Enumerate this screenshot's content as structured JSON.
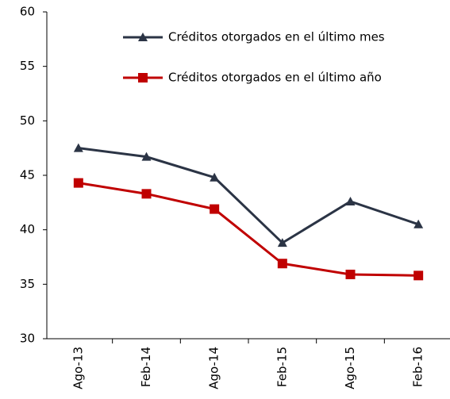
{
  "chart_data": {
    "type": "line",
    "categories": [
      "Ago-13",
      "Feb-14",
      "Ago-14",
      "Feb-15",
      "Ago-15",
      "Feb-16"
    ],
    "series": [
      {
        "name": "Créditos otorgados en el último mes",
        "color": "#2b3445",
        "marker": "triangle",
        "values": [
          47.5,
          46.7,
          44.8,
          38.8,
          42.6,
          40.5
        ]
      },
      {
        "name": "Créditos otorgados en el último año",
        "color": "#c00000",
        "marker": "square",
        "values": [
          44.3,
          43.3,
          41.9,
          36.9,
          35.9,
          35.8
        ]
      }
    ],
    "ylim": [
      30,
      60
    ],
    "yticks": [
      30,
      35,
      40,
      45,
      50,
      55,
      60
    ],
    "grid": false
  }
}
